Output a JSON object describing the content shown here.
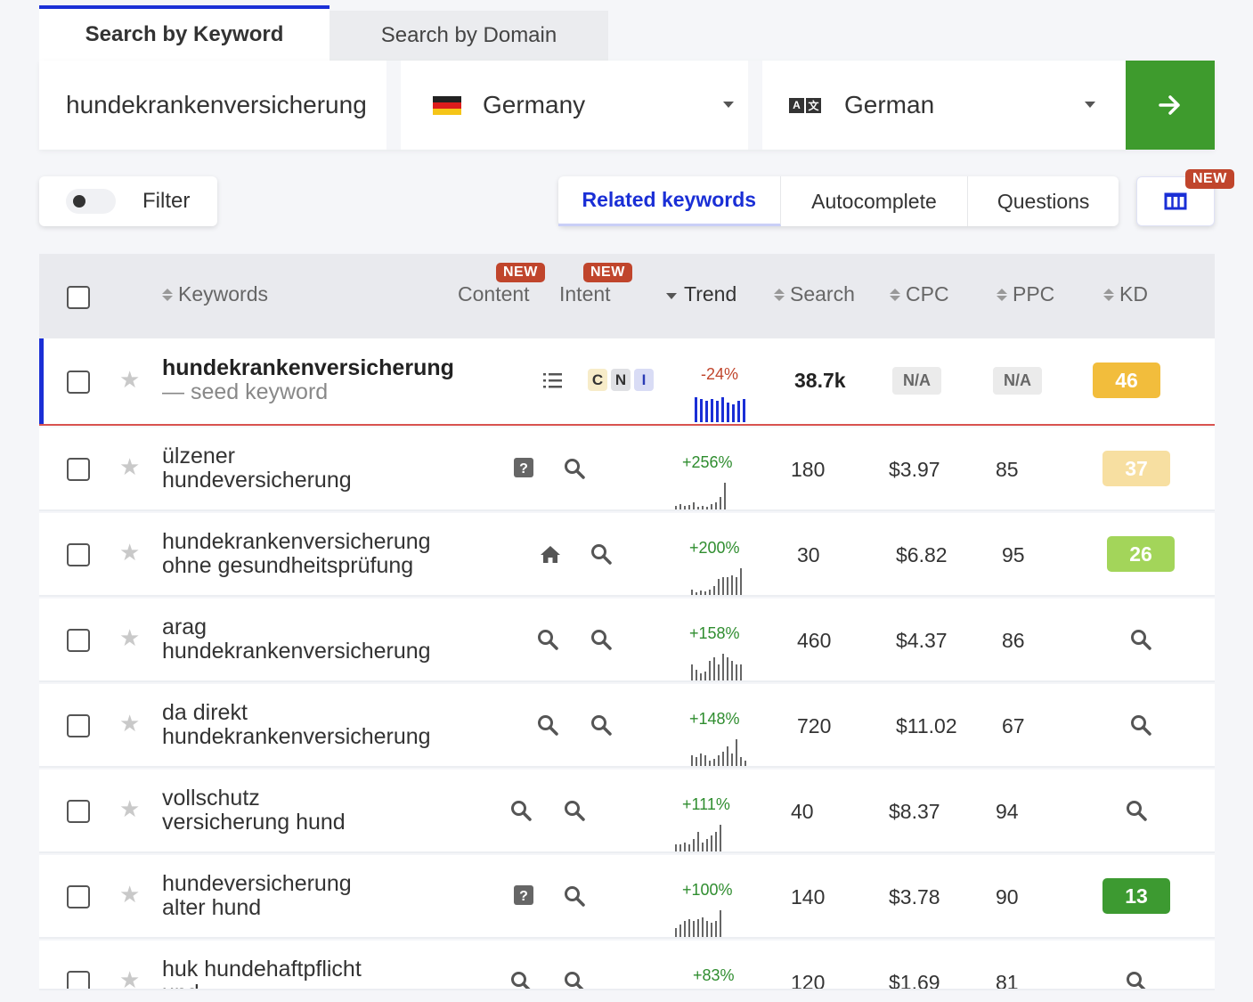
{
  "tabs": {
    "keyword": "Search by Keyword",
    "domain": "Search by Domain"
  },
  "search": {
    "query": "hundekrankenversicherung",
    "country": "Germany",
    "language": "German"
  },
  "filter": {
    "label": "Filter",
    "enabled": false
  },
  "views": {
    "related": "Related keywords",
    "autocomplete": "Autocomplete",
    "questions": "Questions",
    "new_badge": "NEW"
  },
  "columns": {
    "keywords": "Keywords",
    "content": "Content",
    "intent": "Intent",
    "trend": "Trend",
    "search": "Search",
    "cpc": "CPC",
    "ppc": "PPC",
    "kd": "KD",
    "content_badge": "NEW",
    "intent_badge": "NEW"
  },
  "seed": {
    "keyword": "hundekrankenversicherung",
    "subtitle": "— seed keyword",
    "trend": "-24%",
    "search": "38.7k",
    "cpc": "N/A",
    "ppc": "N/A",
    "kd": "46",
    "intents": [
      "C",
      "N",
      "I"
    ]
  },
  "rows": [
    {
      "line1": "ülzener",
      "line2": "hundeversicherung",
      "trend": "+256%",
      "search": "180",
      "cpc": "$3.97",
      "ppc": "85",
      "kd": "37"
    },
    {
      "line1": "hundekrankenversicherung",
      "line2": "ohne gesundheitsprüfung",
      "trend": "+200%",
      "search": "30",
      "cpc": "$6.82",
      "ppc": "95",
      "kd": "26"
    },
    {
      "line1": "arag",
      "line2": "hundekrankenversicherung",
      "trend": "+158%",
      "search": "460",
      "cpc": "$4.37",
      "ppc": "86",
      "kd": ""
    },
    {
      "line1": "da direkt",
      "line2": "hundekrankenversicherung",
      "trend": "+148%",
      "search": "720",
      "cpc": "$11.02",
      "ppc": "67",
      "kd": ""
    },
    {
      "line1": "vollschutz",
      "line2": "versicherung hund",
      "trend": "+111%",
      "search": "40",
      "cpc": "$8.37",
      "ppc": "94",
      "kd": ""
    },
    {
      "line1": "hundeversicherung",
      "line2": "alter hund",
      "trend": "+100%",
      "search": "140",
      "cpc": "$3.78",
      "ppc": "90",
      "kd": "13"
    },
    {
      "line1": "huk hundehaftpflicht",
      "line2": "und",
      "trend": "+83%",
      "search": "120",
      "cpc": "$1.69",
      "ppc": "81",
      "kd": ""
    }
  ],
  "colors": {
    "accent": "#1a2fd6",
    "go_button": "#3e9b2d",
    "kd_46": "#f2bd3c",
    "kd_37": "#f7dfa1",
    "kd_26": "#a3d55a",
    "kd_13": "#3d9a31",
    "trend_up": "#2f8d2f",
    "trend_down": "#c0452c"
  }
}
